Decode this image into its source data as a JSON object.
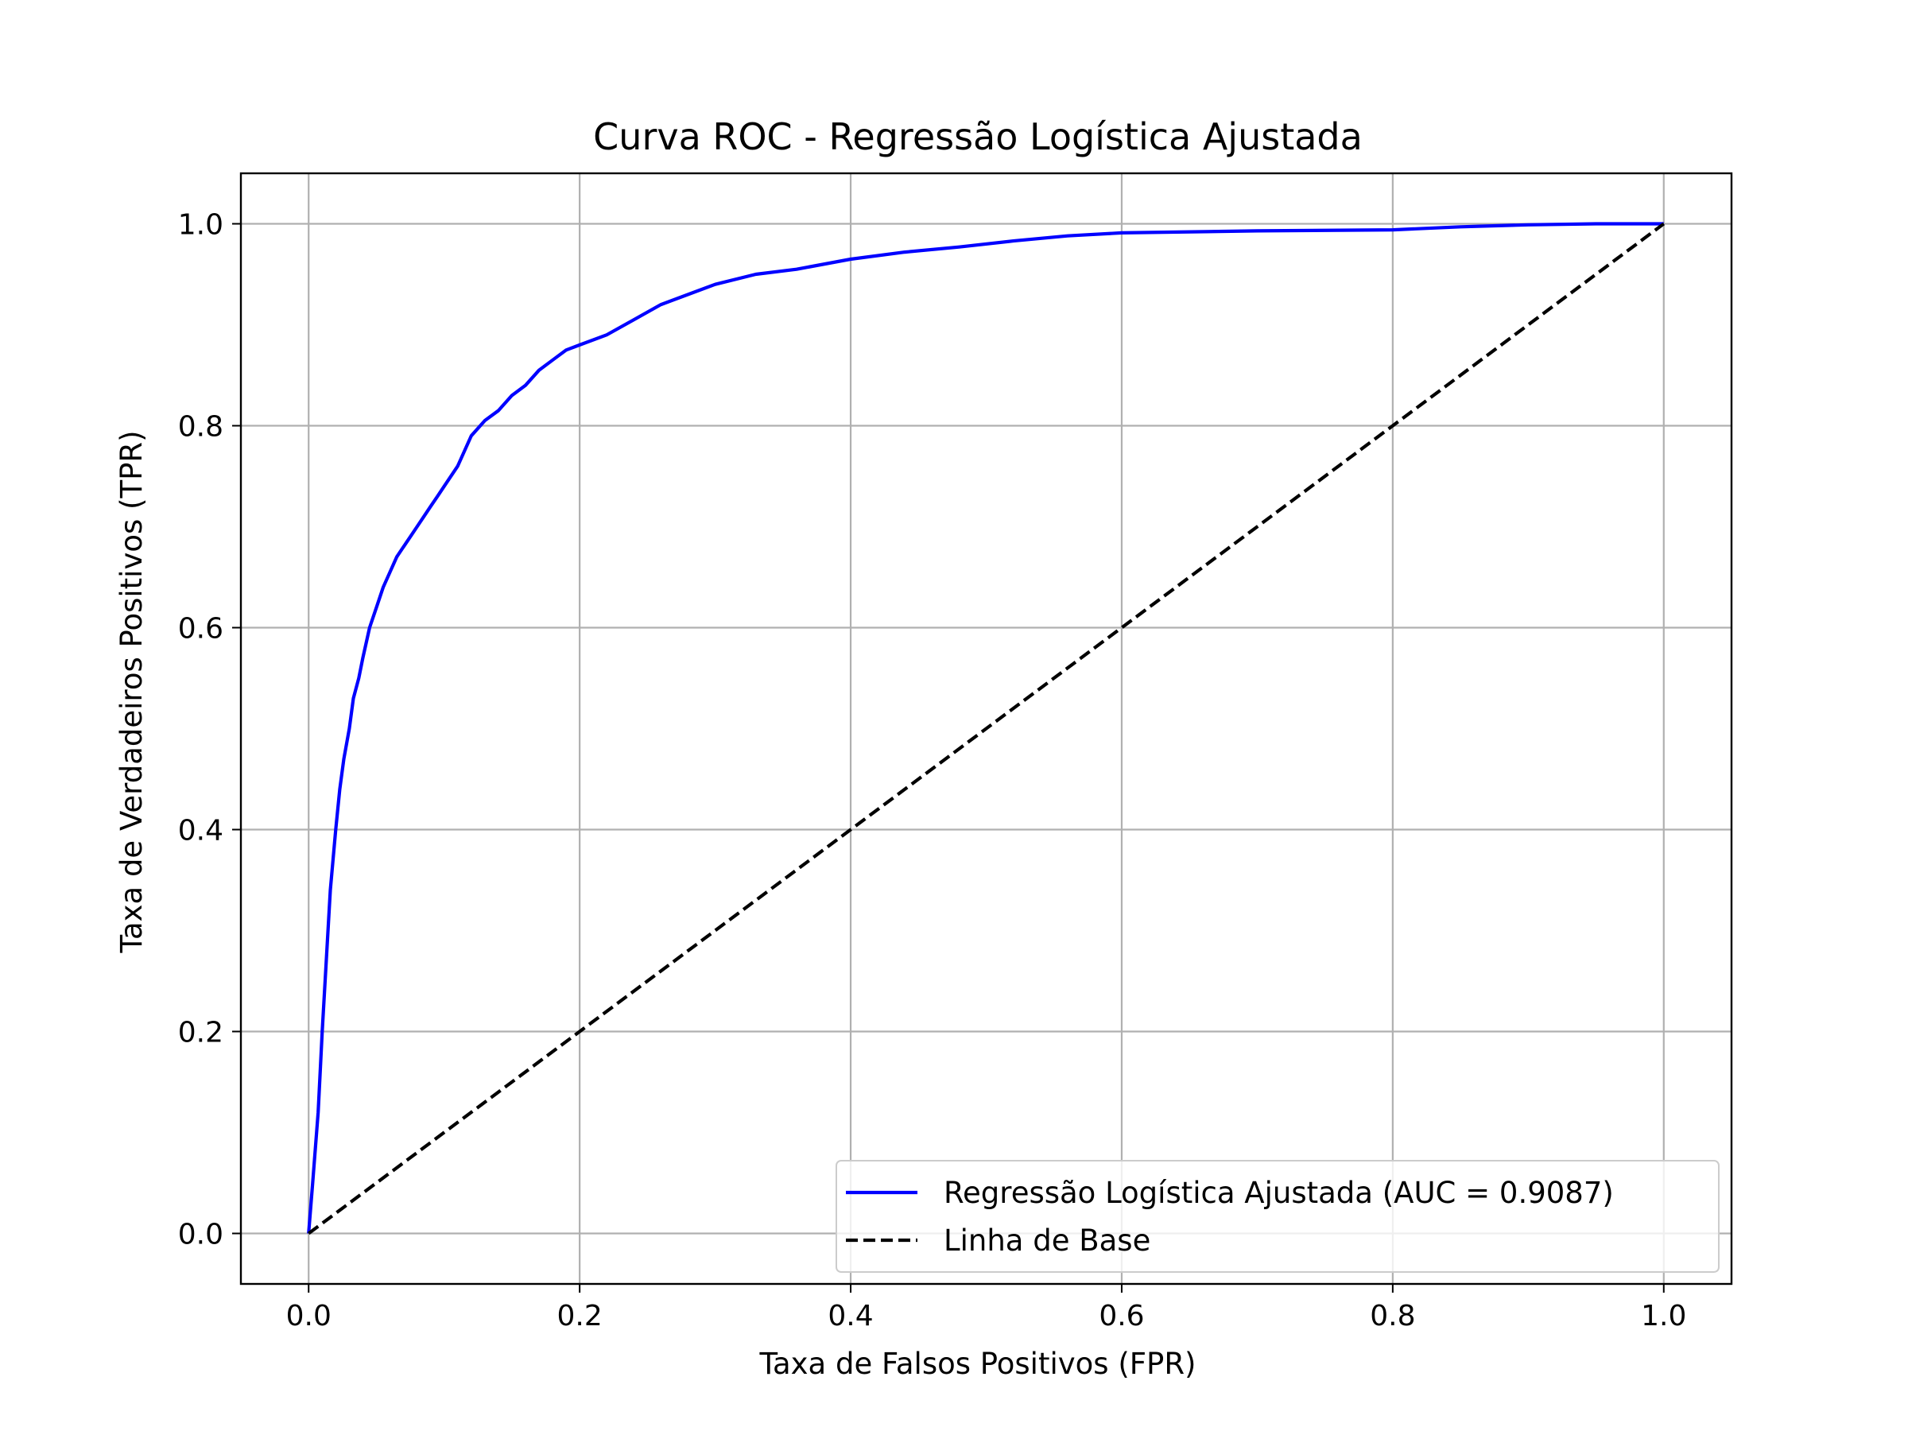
{
  "chart_data": {
    "type": "line",
    "title": "Curva ROC - Regressão Logística Ajustada",
    "xlabel": "Taxa de Falsos Positivos (FPR)",
    "ylabel": "Taxa de Verdadeiros Positivos (TPR)",
    "xlim": [
      -0.05,
      1.05
    ],
    "ylim": [
      -0.05,
      1.05
    ],
    "xticks": [
      0.0,
      0.2,
      0.4,
      0.6,
      0.8,
      1.0
    ],
    "xtick_labels": [
      "0.0",
      "0.2",
      "0.4",
      "0.6",
      "0.8",
      "1.0"
    ],
    "yticks": [
      0.0,
      0.2,
      0.4,
      0.6,
      0.8,
      1.0
    ],
    "ytick_labels": [
      "0.0",
      "0.2",
      "0.4",
      "0.6",
      "0.8",
      "1.0"
    ],
    "grid": true,
    "legend_position": "lower-right",
    "series": [
      {
        "name": "Regressão Logística Ajustada (AUC = 0.9087)",
        "color": "#0000ff",
        "style": "solid",
        "x": [
          0.0,
          0.003,
          0.007,
          0.01,
          0.013,
          0.016,
          0.02,
          0.023,
          0.026,
          0.03,
          0.033,
          0.037,
          0.04,
          0.045,
          0.05,
          0.055,
          0.06,
          0.065,
          0.07,
          0.075,
          0.08,
          0.085,
          0.09,
          0.095,
          0.1,
          0.11,
          0.12,
          0.13,
          0.14,
          0.15,
          0.16,
          0.17,
          0.18,
          0.19,
          0.2,
          0.22,
          0.24,
          0.26,
          0.28,
          0.3,
          0.33,
          0.36,
          0.4,
          0.44,
          0.48,
          0.52,
          0.56,
          0.6,
          0.7,
          0.8,
          0.85,
          0.9,
          0.95,
          1.0
        ],
        "y": [
          0.0,
          0.05,
          0.12,
          0.2,
          0.27,
          0.34,
          0.4,
          0.44,
          0.47,
          0.5,
          0.53,
          0.55,
          0.57,
          0.6,
          0.62,
          0.64,
          0.655,
          0.67,
          0.68,
          0.69,
          0.7,
          0.71,
          0.72,
          0.73,
          0.74,
          0.76,
          0.79,
          0.805,
          0.815,
          0.83,
          0.84,
          0.855,
          0.865,
          0.875,
          0.88,
          0.89,
          0.905,
          0.92,
          0.93,
          0.94,
          0.95,
          0.955,
          0.965,
          0.972,
          0.977,
          0.983,
          0.988,
          0.991,
          0.993,
          0.994,
          0.997,
          0.999,
          1.0,
          1.0
        ]
      },
      {
        "name": "Linha de Base",
        "color": "#000000",
        "style": "dashed",
        "x": [
          0.0,
          1.0
        ],
        "y": [
          0.0,
          1.0
        ]
      }
    ]
  }
}
